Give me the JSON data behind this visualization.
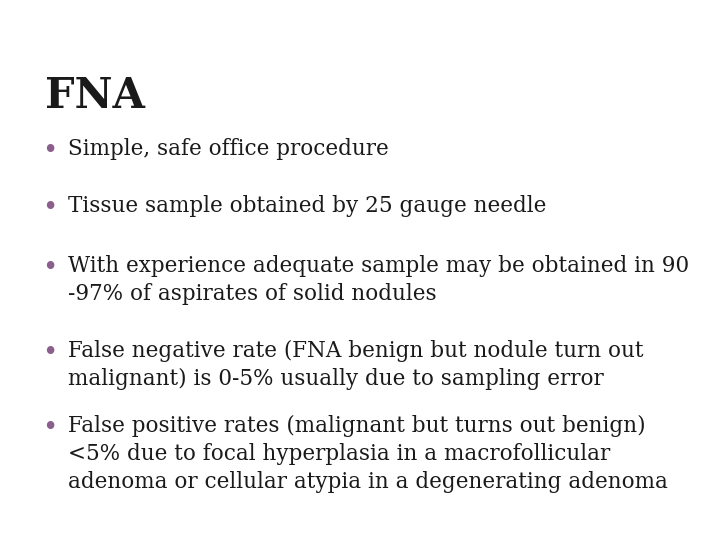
{
  "title": "FNA",
  "title_color": "#1a1a1a",
  "title_fontsize": 30,
  "title_fontweight": "bold",
  "background_color": "#ffffff",
  "bullet_color": "#8B5E8B",
  "text_color": "#1a1a1a",
  "bullet_fontsize": 15.5,
  "bullets": [
    "Simple, safe office procedure",
    "Tissue sample obtained by 25 gauge needle",
    "With experience adequate sample may be obtained in 90\n-97% of aspirates of solid nodules",
    "False negative rate (FNA benign but nodule turn out\nmalignant) is 0-5% usually due to sampling error",
    "False positive rates (malignant but turns out benign)\n<5% due to focal hyperplasia in a macrofollicular\nadenoma or cellular atypia in a degenerating adenoma"
  ],
  "header_dark": "#3d3d4f",
  "header_teal": "#2e7d87",
  "header_light1": "#a8bfc4",
  "header_light2": "#c8d8dc",
  "header_white": "#ffffff"
}
